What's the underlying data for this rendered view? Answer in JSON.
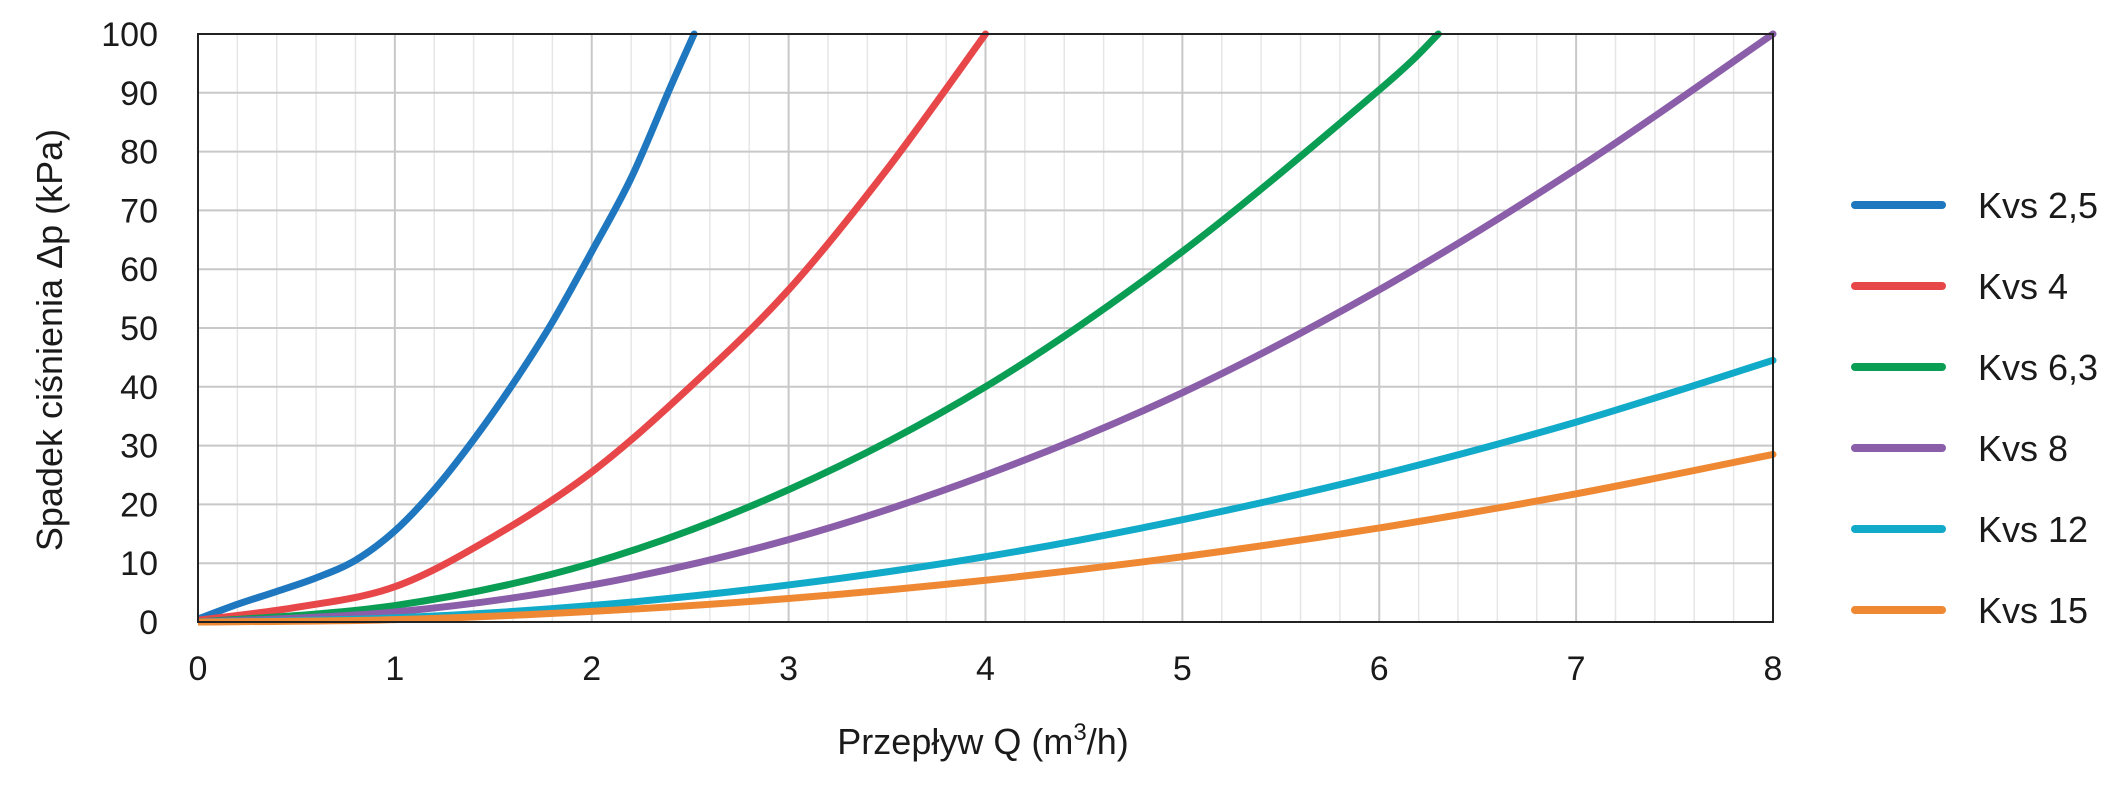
{
  "chart_data": {
    "type": "line",
    "title": "",
    "xlabel": "Przepływ Q (m",
    "xlabel_sup": "3",
    "xlabel_tail": "/h)",
    "ylabel": "Spadek ciśnienia Δp (kPa)",
    "xlim": [
      0,
      8
    ],
    "ylim": [
      0,
      100
    ],
    "x_ticks": [
      "0",
      "1",
      "2",
      "3",
      "4",
      "5",
      "6",
      "7",
      "8"
    ],
    "y_ticks": [
      "0",
      "10",
      "20",
      "30",
      "40",
      "50",
      "60",
      "70",
      "80",
      "90",
      "100"
    ],
    "grid": true,
    "legend_position": "right",
    "series": [
      {
        "name": "Kvs 2,5",
        "color": "#1f78bf",
        "x": [
          0,
          0.2,
          0.4,
          0.6,
          0.8,
          1.0,
          1.2,
          1.4,
          1.6,
          1.8,
          2.0,
          2.2,
          2.4,
          2.52
        ],
        "y": [
          0.5,
          3,
          5.2,
          7.5,
          10.5,
          15.5,
          22.5,
          31,
          40.5,
          51,
          63,
          75.5,
          91,
          100
        ]
      },
      {
        "name": "Kvs 4",
        "color": "#e8474a",
        "x": [
          0,
          0.5,
          1.0,
          1.5,
          2.0,
          2.5,
          3.0,
          3.5,
          4.0
        ],
        "y": [
          0.3,
          2.5,
          6,
          14.5,
          25.5,
          40,
          56.5,
          77,
          100
        ]
      },
      {
        "name": "Kvs 6,3",
        "color": "#0a9e55",
        "x": [
          0,
          1,
          2,
          3,
          4,
          5,
          6,
          6.3
        ],
        "y": [
          0,
          2.8,
          10,
          22.5,
          40,
          63,
          90.5,
          100
        ]
      },
      {
        "name": "Kvs 8",
        "color": "#8a5ea8",
        "x": [
          0,
          1,
          2,
          3,
          4,
          5,
          6,
          7,
          8
        ],
        "y": [
          0,
          1.7,
          6.3,
          14,
          25,
          39,
          56.5,
          77,
          100
        ]
      },
      {
        "name": "Kvs 12",
        "color": "#12aac9",
        "x": [
          0,
          1,
          2,
          3,
          4,
          5,
          6,
          7,
          8
        ],
        "y": [
          0,
          0.7,
          2.8,
          6.3,
          11.1,
          17.4,
          25,
          34,
          44.5
        ]
      },
      {
        "name": "Kvs 15",
        "color": "#ef8833",
        "x": [
          0,
          1,
          2,
          3,
          4,
          5,
          6,
          7,
          8
        ],
        "y": [
          0,
          0.4,
          1.8,
          4,
          7.1,
          11.1,
          16,
          21.8,
          28.5
        ]
      }
    ]
  }
}
